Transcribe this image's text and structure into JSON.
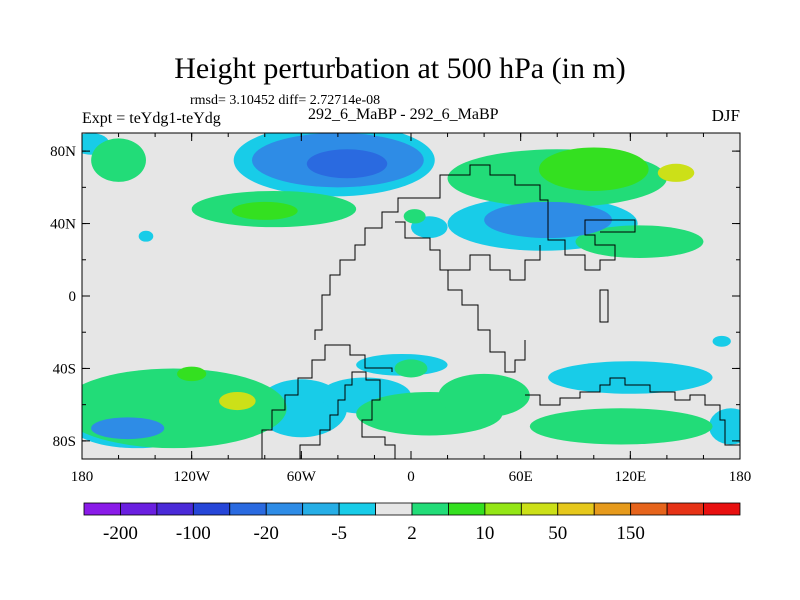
{
  "header": {
    "title": "Height perturbation at 500 hPa (in m)",
    "stats": "rmsd= 3.10452 diff= 2.72714e-08",
    "left_label": "Expt = teYdg1-teYdg",
    "center_label": "292_6_MaBP - 292_6_MaBP",
    "right_label": "DJF"
  },
  "chart_data": {
    "type": "heatmap",
    "title": "Height perturbation at 500 hPa (in m)",
    "subtitle": "292_6_MaBP - 292_6_MaBP",
    "xlabel": "",
    "ylabel": "",
    "xlim": [
      -180,
      180
    ],
    "ylim": [
      -90,
      90
    ],
    "x_ticks": [
      {
        "value": -180,
        "label": "180"
      },
      {
        "value": -120,
        "label": "120W"
      },
      {
        "value": -60,
        "label": "60W"
      },
      {
        "value": 0,
        "label": "0"
      },
      {
        "value": 60,
        "label": "60E"
      },
      {
        "value": 120,
        "label": "120E"
      },
      {
        "value": 180,
        "label": "180"
      }
    ],
    "y_ticks": [
      {
        "value": 80,
        "label": "80N"
      },
      {
        "value": 40,
        "label": "40N"
      },
      {
        "value": 0,
        "label": "0"
      },
      {
        "value": -40,
        "label": "40S"
      },
      {
        "value": -80,
        "label": "80S"
      }
    ],
    "colorbar": {
      "colors": [
        "#8a1be8",
        "#6a1fe0",
        "#4a2ad8",
        "#2646d8",
        "#2a6ae0",
        "#2e8ce6",
        "#26aee6",
        "#18cce8",
        "#e6e6e6",
        "#22dc78",
        "#34e020",
        "#94e616",
        "#cce018",
        "#e6c81c",
        "#e69a1c",
        "#e6641c",
        "#e63216",
        "#e81010"
      ],
      "labels": [
        {
          "after_box": 1,
          "text": "-200"
        },
        {
          "after_box": 3,
          "text": "-100"
        },
        {
          "after_box": 5,
          "text": "-20"
        },
        {
          "after_box": 7,
          "text": "-5"
        },
        {
          "after_box": 9,
          "text": "2"
        },
        {
          "after_box": 11,
          "text": "10"
        },
        {
          "after_box": 13,
          "text": "50"
        },
        {
          "after_box": 15,
          "text": "150"
        }
      ]
    },
    "features": [
      {
        "name": "n-pacific-low",
        "lon": -40,
        "lat": 75,
        "rlon": 47,
        "rlat": 15,
        "level": -15
      },
      {
        "name": "n-pacific-low-core",
        "lon": -35,
        "lat": 73,
        "rlon": 22,
        "rlat": 8,
        "level": -25
      },
      {
        "name": "n-pacific-ring",
        "lon": -42,
        "lat": 75,
        "rlon": 55,
        "rlat": 20,
        "level": -4
      },
      {
        "name": "n-pacific-green",
        "lon": -75,
        "lat": 48,
        "rlon": 45,
        "rlat": 10,
        "level": 5
      },
      {
        "name": "n-pacific-green-core",
        "lon": -80,
        "lat": 47,
        "rlon": 18,
        "rlat": 5,
        "level": 12
      },
      {
        "name": "arctic-green-left",
        "lon": -160,
        "lat": 75,
        "rlon": 15,
        "rlat": 12,
        "level": 5
      },
      {
        "name": "arctic-blue-left",
        "lon": -175,
        "lat": 84,
        "rlon": 10,
        "rlat": 6,
        "level": -4
      },
      {
        "name": "n-atlantic-green-arc",
        "lon": 80,
        "lat": 65,
        "rlon": 60,
        "rlat": 16,
        "level": 5
      },
      {
        "name": "n-atlantic-green-core",
        "lon": 100,
        "lat": 70,
        "rlon": 30,
        "rlat": 12,
        "level": 12
      },
      {
        "name": "n-atlantic-yellow",
        "lon": 145,
        "lat": 68,
        "rlon": 10,
        "rlat": 5,
        "level": 30
      },
      {
        "name": "eurasia-blue",
        "lon": 72,
        "lat": 40,
        "rlon": 52,
        "rlat": 15,
        "level": -4
      },
      {
        "name": "eurasia-blue-core",
        "lon": 75,
        "lat": 42,
        "rlon": 35,
        "rlat": 10,
        "level": -15
      },
      {
        "name": "east-asia-green",
        "lon": 125,
        "lat": 30,
        "rlon": 35,
        "rlat": 9,
        "level": 5
      },
      {
        "name": "med-blue",
        "lon": 10,
        "lat": 38,
        "rlon": 10,
        "rlat": 6,
        "level": -4
      },
      {
        "name": "med-green",
        "lon": 2,
        "lat": 44,
        "rlon": 6,
        "rlat": 4,
        "level": 5
      },
      {
        "name": "sw-pacific-blue",
        "lon": -60,
        "lat": -62,
        "rlon": 25,
        "rlat": 16,
        "level": -4
      },
      {
        "name": "s-pacific-green-big",
        "lon": -130,
        "lat": -62,
        "rlon": 62,
        "rlat": 22,
        "level": 5
      },
      {
        "name": "s-pacific-blue-west",
        "lon": -150,
        "lat": -72,
        "rlon": 35,
        "rlat": 12,
        "level": -4
      },
      {
        "name": "s-pacific-blue-core",
        "lon": -155,
        "lat": -73,
        "rlon": 20,
        "rlat": 6,
        "level": -15
      },
      {
        "name": "s-pacific-yellow",
        "lon": -95,
        "lat": -58,
        "rlon": 10,
        "rlat": 5,
        "level": 30
      },
      {
        "name": "s-pacific-yellow-2",
        "lon": -120,
        "lat": -43,
        "rlon": 8,
        "rlat": 4,
        "level": 12
      },
      {
        "name": "s-atlantic-green",
        "lon": 10,
        "lat": -65,
        "rlon": 40,
        "rlat": 12,
        "level": 5
      },
      {
        "name": "s-atlantic-blue",
        "lon": -25,
        "lat": -55,
        "rlon": 25,
        "rlat": 10,
        "level": -4
      },
      {
        "name": "s-atlantic-blue-2",
        "lon": -5,
        "lat": -38,
        "rlon": 25,
        "rlat": 6,
        "level": -4
      },
      {
        "name": "s-atlantic-green-2",
        "lon": 0,
        "lat": -40,
        "rlon": 9,
        "rlat": 5,
        "level": 5
      },
      {
        "name": "indian-ocean-blue-band",
        "lon": 120,
        "lat": -45,
        "rlon": 45,
        "rlat": 9,
        "level": -4
      },
      {
        "name": "indian-ocean-green-band",
        "lon": 115,
        "lat": -72,
        "rlon": 50,
        "rlat": 10,
        "level": 5
      },
      {
        "name": "indian-ocean-green-left",
        "lon": 40,
        "lat": -55,
        "rlon": 25,
        "rlat": 12,
        "level": 5
      },
      {
        "name": "s-ocean-blue-right",
        "lon": 175,
        "lat": -72,
        "rlon": 12,
        "rlat": 10,
        "level": -4
      },
      {
        "name": "tropic-blue-small",
        "lon": -145,
        "lat": 33,
        "rlon": 4,
        "rlat": 3,
        "level": -4
      },
      {
        "name": "sa-blue-small",
        "lon": 170,
        "lat": -25,
        "rlon": 5,
        "rlat": 3,
        "level": -4
      }
    ]
  }
}
